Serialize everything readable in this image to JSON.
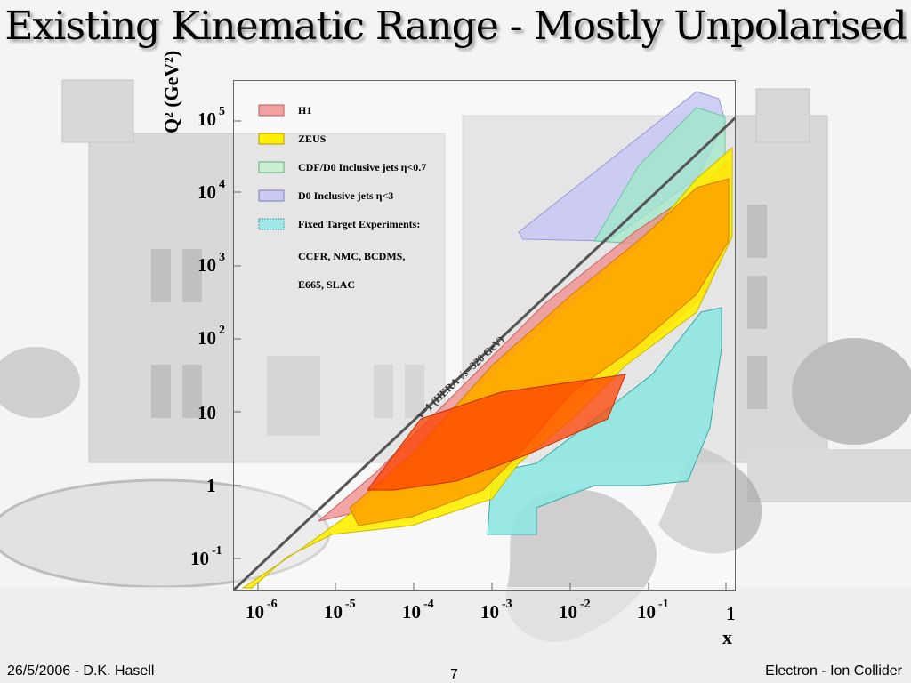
{
  "title": "Existing Kinematic Range - Mostly Unpolarised",
  "footer": {
    "left": "26/5/2006 - D.K. Hasell",
    "center": "7",
    "right": "Electron - Ion Collider"
  },
  "plot": {
    "y_axis_label": "Q² (GeV²)",
    "x_axis_label": "x",
    "y_ticks": [
      {
        "base": "10",
        "exp": "5"
      },
      {
        "base": "10",
        "exp": "4"
      },
      {
        "base": "10",
        "exp": "3"
      },
      {
        "base": "10",
        "exp": "2"
      },
      {
        "base": "10",
        "exp": ""
      },
      {
        "base": "1",
        "exp": ""
      },
      {
        "base": "10",
        "exp": "-1"
      }
    ],
    "x_ticks": [
      {
        "base": "10",
        "exp": "-6"
      },
      {
        "base": "10",
        "exp": "-5"
      },
      {
        "base": "10",
        "exp": "-4"
      },
      {
        "base": "10",
        "exp": "-3"
      },
      {
        "base": "10",
        "exp": "-2"
      },
      {
        "base": "10",
        "exp": "-1"
      },
      {
        "base": "1",
        "exp": ""
      }
    ],
    "line_label": "y=1 (HERA √s=320 GeV)",
    "legend": [
      {
        "label": "H1",
        "color": "#f4a0a0"
      },
      {
        "label": "ZEUS",
        "color": "#ffee00"
      },
      {
        "label": "CDF/D0   Inclusive jets η<0.7",
        "color": "#c8f0d0"
      },
      {
        "label": "D0  Inclusive jets η<3",
        "color": "#c8c8f0"
      },
      {
        "label": "Fixed Target Experiments:",
        "color": "#a0e8e8"
      },
      {
        "label": "CCFR, NMC, BCDMS,",
        "color": ""
      },
      {
        "label": "E665, SLAC",
        "color": ""
      }
    ],
    "colors": {
      "h1": "#f08a8a",
      "zeus": "#ffee00",
      "orange": "#ffa500",
      "red": "#ff4000",
      "cdf": "#9ee8c8",
      "d0": "#c8c8f4",
      "fixed_target": "#8fe6e0"
    }
  }
}
